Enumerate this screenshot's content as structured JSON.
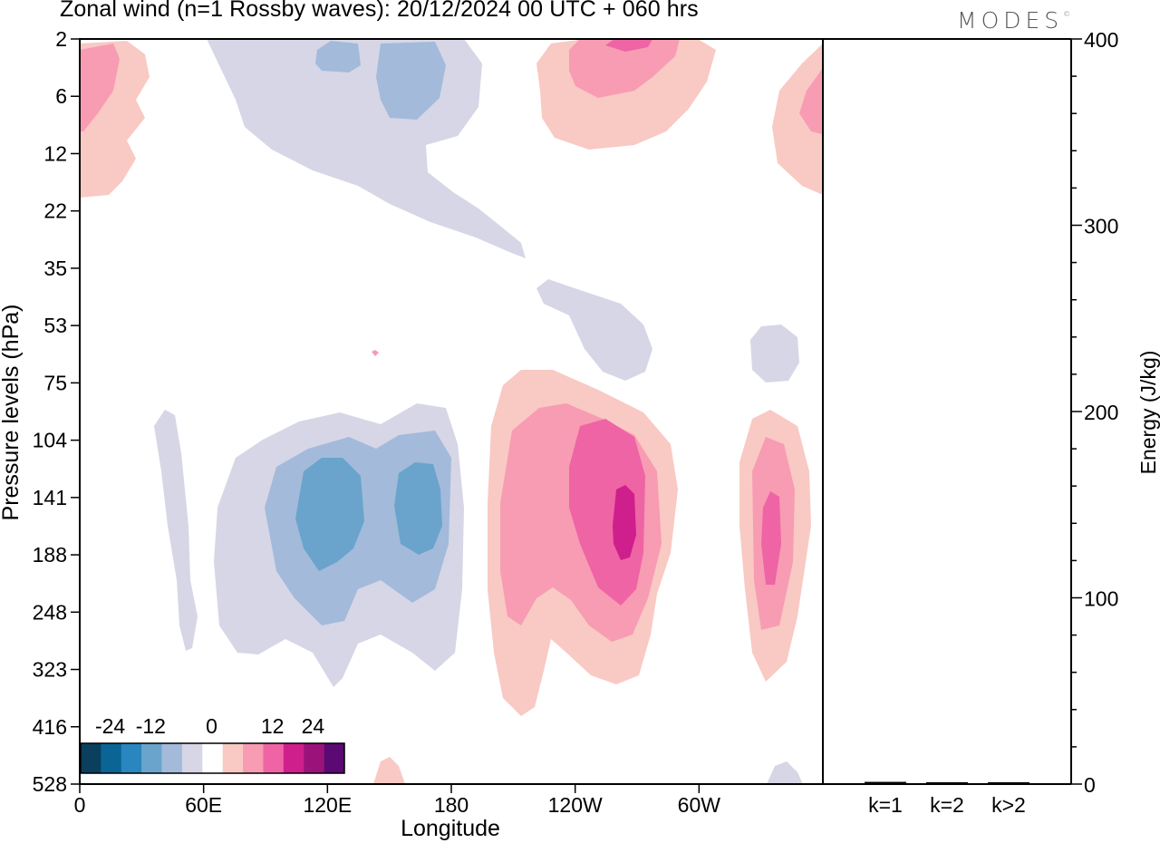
{
  "title": "Zonal wind (n=1 Rossby waves):  20/12/2024  00 UTC  + 060 hrs",
  "logo_text": "MODES",
  "logo_mark": "©",
  "chart_data": [
    {
      "type": "heatmap",
      "subtype": "filled-contour",
      "variable": "Zonal wind",
      "xlabel": "Longitude",
      "ylabel": "Pressure levels (hPa)",
      "x_ticks": [
        "0",
        "60E",
        "120E",
        "180",
        "120W",
        "60W"
      ],
      "y_ticks": [
        "2",
        "6",
        "12",
        "22",
        "35",
        "53",
        "75",
        "104",
        "141",
        "188",
        "248",
        "323",
        "416",
        "528"
      ],
      "colorbar": {
        "tick_labels": [
          "-24",
          "-12",
          "0",
          "12",
          "24"
        ],
        "levels": [
          -30,
          -24,
          -18,
          -12,
          -6,
          -3,
          3,
          6,
          12,
          18,
          24,
          30
        ],
        "colors": [
          "#0b3f5e",
          "#0a6596",
          "#2a86be",
          "#6aa4cc",
          "#a3bada",
          "#d6d6e6",
          "#ffffff",
          "#f9c9c4",
          "#f79cb3",
          "#ef64a4",
          "#cf1f8c",
          "#9a137a",
          "#5a0a72"
        ]
      },
      "features": [
        {
          "sign": "negative",
          "peak": -12,
          "center_lon": "120E",
          "center_level": 141
        },
        {
          "sign": "negative",
          "peak": -12,
          "center_lon": "168E",
          "center_level": 141
        },
        {
          "sign": "positive",
          "peak": 24,
          "center_lon": "135W",
          "center_level": 150
        },
        {
          "sign": "positive",
          "peak": 12,
          "center_lon": "35W",
          "center_level": 150
        },
        {
          "sign": "negative",
          "peak": -6,
          "center_lon": "150E",
          "center_level": 6
        },
        {
          "sign": "positive",
          "peak": 12,
          "center_lon": "140W",
          "center_level": 2
        }
      ]
    },
    {
      "type": "bar",
      "ylabel": "Energy (J/kg)",
      "categories": [
        "k=1",
        "k=2",
        "k>2"
      ],
      "values": [
        0.6,
        0.4,
        0.4
      ],
      "ylim": [
        0,
        400
      ],
      "y_ticks": [
        "0",
        "100",
        "200",
        "300",
        "400"
      ]
    }
  ]
}
